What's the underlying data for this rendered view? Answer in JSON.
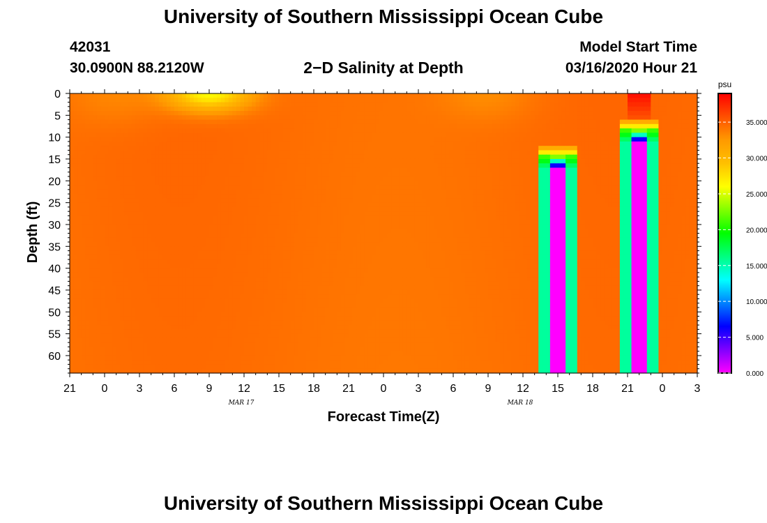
{
  "header": {
    "title": "University of Southern Mississippi Ocean Cube",
    "station": "42031",
    "coordinates": "30.0900N 88.2120W",
    "plot_title": "2−D Salinity at Depth",
    "start_label": "Model Start Time",
    "start_value": "03/16/2020 Hour 21"
  },
  "footer": {
    "title": "University of Southern Mississippi Ocean Cube"
  },
  "chart_data": {
    "type": "heatmap",
    "xlabel": "Forecast Time(Z)",
    "ylabel": "Depth (ft)",
    "x_start_hour_label": "21",
    "x_tick_labels": [
      "21",
      "0",
      "3",
      "6",
      "9",
      "12",
      "15",
      "18",
      "21",
      "0",
      "3",
      "6",
      "9",
      "12",
      "15",
      "18",
      "21",
      "0",
      "3"
    ],
    "x_date_labels": [
      {
        "label": "MAR 17",
        "at_tick": 5
      },
      {
        "label": "MAR 18",
        "at_tick": 13
      }
    ],
    "y_tick_labels": [
      "0",
      "5",
      "10",
      "15",
      "20",
      "25",
      "30",
      "35",
      "40",
      "45",
      "50",
      "55",
      "60"
    ],
    "ylim": [
      0,
      64
    ],
    "y_inverted": true,
    "colorbar": {
      "unit": "psu",
      "range": [
        0,
        39
      ],
      "tick_labels": [
        "0.000",
        "5.000",
        "10.000",
        "15.000",
        "20.000",
        "25.000",
        "30.000",
        "35.000"
      ],
      "colors": [
        "#ff00ff",
        "#8000ff",
        "#0000ff",
        "#0080ff",
        "#00ffff",
        "#00ff80",
        "#00ff00",
        "#80ff00",
        "#ffff00",
        "#ffc000",
        "#ff9a00",
        "#ff5000",
        "#ff0000"
      ]
    },
    "background_salinity": 34.5,
    "features": [
      {
        "kind": "surface_fresh",
        "x_hour": 12,
        "depth_top": 0,
        "depth_bottom": 3,
        "min_salinity": 26
      },
      {
        "kind": "surface_fresh_slight",
        "x_hour": 4,
        "depth_top": 0,
        "depth_bottom": 6,
        "min_salinity": 33.2
      },
      {
        "kind": "surface_fresh_slight",
        "x_hour": 36,
        "depth_top": 0,
        "depth_bottom": 5,
        "min_salinity": 33.2
      },
      {
        "kind": "column",
        "x_hour": 42,
        "top_depth": 14,
        "low_salinity": 0
      },
      {
        "kind": "column",
        "x_hour": 49,
        "top_depth": 8,
        "low_salinity": 0,
        "high_salinity_top": 38.5
      }
    ],
    "x_hours_total": 54
  }
}
